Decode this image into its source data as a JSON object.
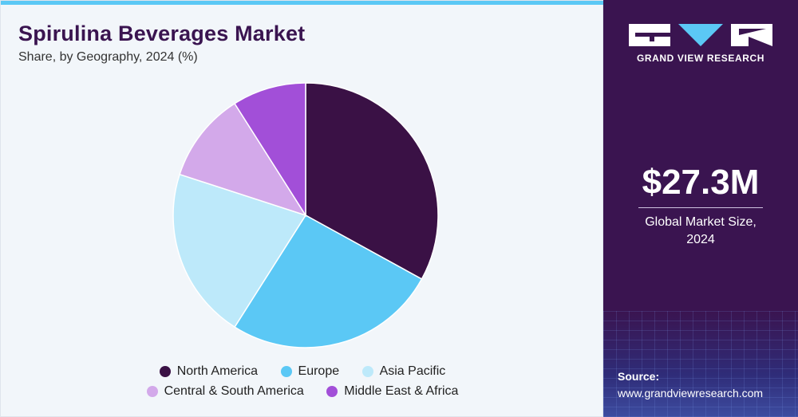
{
  "title": "Spirulina Beverages Market",
  "subtitle": "Share, by Geography, 2024 (%)",
  "chart_data": {
    "type": "pie",
    "title": "Spirulina Beverages Market",
    "subtitle": "Share, by Geography, 2024 (%)",
    "categories": [
      "North America",
      "Europe",
      "Asia Pacific",
      "Central & South America",
      "Middle East & Africa"
    ],
    "values": [
      33,
      26,
      21,
      11,
      9
    ],
    "colors": [
      "#3a1145",
      "#5bc8f5",
      "#bde9fa",
      "#d3a9ea",
      "#a24fd8"
    ],
    "legend_position": "bottom"
  },
  "sidebar": {
    "logo_text": "GRAND VIEW RESEARCH",
    "market_value": "$27.3M",
    "market_label_line1": "Global Market Size,",
    "market_label_line2": "2024",
    "source_label": "Source:",
    "source_url": "www.grandviewresearch.com"
  },
  "colors": {
    "brand_dark": "#3a1450",
    "accent": "#5bc8f5"
  }
}
